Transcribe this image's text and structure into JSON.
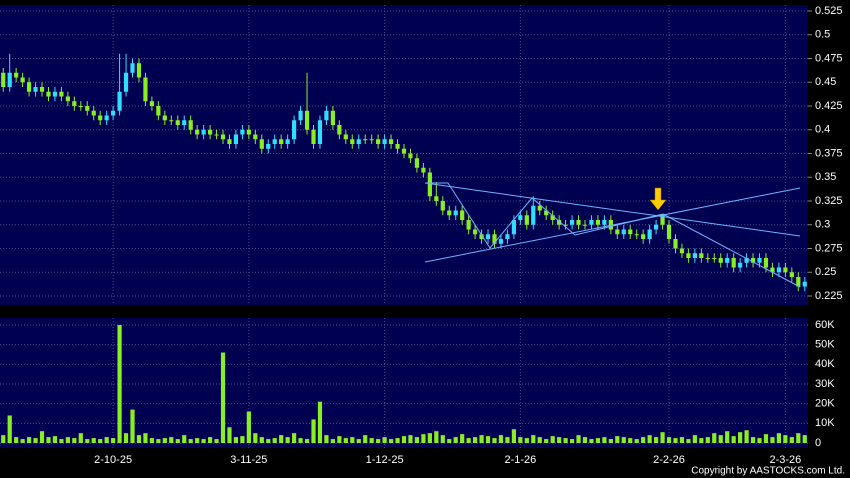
{
  "chart_data": {
    "type": "candlestick",
    "categories": [
      null,
      null,
      null,
      null,
      null,
      null,
      null,
      null,
      null,
      null,
      null,
      null,
      null,
      null,
      null,
      null,
      null,
      "2-10-25",
      null,
      null,
      null,
      null,
      null,
      null,
      null,
      null,
      null,
      null,
      null,
      null,
      null,
      null,
      null,
      null,
      null,
      null,
      null,
      null,
      "3-11-25",
      null,
      null,
      null,
      null,
      null,
      null,
      null,
      null,
      null,
      null,
      null,
      null,
      null,
      null,
      null,
      null,
      null,
      null,
      null,
      null,
      "1-12-25",
      null,
      null,
      null,
      null,
      null,
      null,
      null,
      null,
      null,
      null,
      null,
      null,
      null,
      null,
      null,
      null,
      null,
      null,
      null,
      null,
      "2-1-26",
      null,
      null,
      null,
      null,
      null,
      null,
      null,
      null,
      null,
      null,
      null,
      null,
      null,
      null,
      null,
      null,
      null,
      null,
      null,
      null,
      null,
      null,
      "2-2-26",
      null,
      null,
      null,
      null,
      null,
      null,
      null,
      null,
      null,
      null,
      null,
      null,
      null,
      null,
      null,
      null,
      null,
      "2-3-26",
      null,
      null,
      null
    ],
    "open": [
      0.46,
      0.445,
      0.46,
      0.455,
      0.45,
      0.44,
      0.445,
      0.44,
      0.435,
      0.44,
      0.435,
      0.43,
      0.425,
      0.425,
      0.42,
      0.415,
      0.41,
      0.415,
      0.42,
      0.44,
      0.46,
      0.47,
      0.455,
      0.43,
      0.425,
      0.415,
      0.41,
      0.41,
      0.405,
      0.41,
      0.4,
      0.395,
      0.4,
      0.395,
      0.395,
      0.39,
      0.385,
      0.395,
      0.4,
      0.395,
      0.39,
      0.38,
      0.385,
      0.39,
      0.385,
      0.39,
      0.41,
      0.42,
      0.4,
      0.385,
      0.41,
      0.42,
      0.405,
      0.395,
      0.39,
      0.385,
      0.39,
      0.39,
      0.39,
      0.385,
      0.39,
      0.385,
      0.38,
      0.375,
      0.37,
      0.36,
      0.355,
      0.33,
      0.325,
      0.315,
      0.31,
      0.315,
      0.305,
      0.295,
      0.29,
      0.285,
      0.29,
      0.28,
      0.285,
      0.29,
      0.305,
      0.31,
      0.3,
      0.32,
      0.315,
      0.31,
      0.305,
      0.3,
      0.3,
      0.305,
      0.3,
      0.3,
      0.305,
      0.3,
      0.305,
      0.295,
      0.29,
      0.295,
      0.29,
      0.29,
      0.285,
      0.295,
      0.31,
      0.3,
      0.285,
      0.275,
      0.27,
      0.265,
      0.27,
      0.265,
      0.265,
      0.265,
      0.26,
      0.265,
      0.255,
      0.26,
      0.265,
      0.26,
      0.265,
      0.255,
      0.25,
      0.255,
      0.25,
      0.245,
      0.235
    ],
    "high": [
      0.465,
      0.48,
      0.465,
      0.46,
      0.455,
      0.45,
      0.45,
      0.445,
      0.445,
      0.445,
      0.44,
      0.435,
      0.43,
      0.43,
      0.425,
      0.42,
      0.42,
      0.425,
      0.48,
      0.48,
      0.475,
      0.475,
      0.46,
      0.435,
      0.43,
      0.42,
      0.415,
      0.415,
      0.415,
      0.415,
      0.405,
      0.405,
      0.405,
      0.4,
      0.4,
      0.395,
      0.4,
      0.405,
      0.405,
      0.4,
      0.395,
      0.39,
      0.395,
      0.395,
      0.395,
      0.415,
      0.425,
      0.46,
      0.405,
      0.415,
      0.425,
      0.425,
      0.41,
      0.4,
      0.395,
      0.395,
      0.395,
      0.395,
      0.395,
      0.395,
      0.395,
      0.39,
      0.385,
      0.38,
      0.375,
      0.365,
      0.36,
      0.345,
      0.33,
      0.32,
      0.32,
      0.32,
      0.31,
      0.3,
      0.295,
      0.295,
      0.295,
      0.29,
      0.295,
      0.31,
      0.315,
      0.315,
      0.33,
      0.325,
      0.32,
      0.315,
      0.31,
      0.305,
      0.31,
      0.31,
      0.305,
      0.31,
      0.31,
      0.31,
      0.31,
      0.3,
      0.3,
      0.3,
      0.295,
      0.295,
      0.3,
      0.305,
      0.31,
      0.305,
      0.29,
      0.28,
      0.275,
      0.275,
      0.275,
      0.27,
      0.27,
      0.27,
      0.27,
      0.27,
      0.265,
      0.27,
      0.27,
      0.27,
      0.27,
      0.26,
      0.26,
      0.26,
      0.255,
      0.25,
      0.245
    ],
    "low": [
      0.44,
      0.44,
      0.45,
      0.445,
      0.435,
      0.435,
      0.435,
      0.43,
      0.43,
      0.43,
      0.425,
      0.42,
      0.42,
      0.415,
      0.41,
      0.405,
      0.405,
      0.41,
      0.415,
      0.435,
      0.455,
      0.45,
      0.425,
      0.42,
      0.41,
      0.405,
      0.405,
      0.4,
      0.4,
      0.395,
      0.39,
      0.39,
      0.39,
      0.39,
      0.385,
      0.38,
      0.38,
      0.39,
      0.39,
      0.385,
      0.375,
      0.375,
      0.38,
      0.38,
      0.38,
      0.385,
      0.405,
      0.395,
      0.38,
      0.38,
      0.405,
      0.4,
      0.39,
      0.385,
      0.38,
      0.38,
      0.385,
      0.385,
      0.38,
      0.38,
      0.38,
      0.375,
      0.37,
      0.365,
      0.355,
      0.35,
      0.325,
      0.32,
      0.31,
      0.305,
      0.305,
      0.3,
      0.29,
      0.285,
      0.28,
      0.28,
      0.275,
      0.275,
      0.28,
      0.285,
      0.3,
      0.295,
      0.295,
      0.31,
      0.305,
      0.3,
      0.295,
      0.295,
      0.295,
      0.295,
      0.295,
      0.295,
      0.295,
      0.295,
      0.29,
      0.285,
      0.285,
      0.285,
      0.285,
      0.28,
      0.28,
      0.29,
      0.295,
      0.28,
      0.27,
      0.265,
      0.26,
      0.26,
      0.26,
      0.26,
      0.26,
      0.255,
      0.255,
      0.25,
      0.25,
      0.255,
      0.255,
      0.255,
      0.25,
      0.245,
      0.245,
      0.245,
      0.24,
      0.23,
      0.23
    ],
    "close": [
      0.445,
      0.46,
      0.455,
      0.45,
      0.44,
      0.445,
      0.44,
      0.435,
      0.44,
      0.435,
      0.43,
      0.425,
      0.425,
      0.42,
      0.415,
      0.41,
      0.415,
      0.42,
      0.44,
      0.46,
      0.47,
      0.455,
      0.43,
      0.425,
      0.415,
      0.41,
      0.41,
      0.405,
      0.41,
      0.4,
      0.395,
      0.4,
      0.395,
      0.395,
      0.39,
      0.385,
      0.395,
      0.4,
      0.395,
      0.39,
      0.38,
      0.385,
      0.39,
      0.385,
      0.39,
      0.41,
      0.42,
      0.4,
      0.385,
      0.41,
      0.42,
      0.405,
      0.395,
      0.39,
      0.385,
      0.39,
      0.39,
      0.39,
      0.385,
      0.39,
      0.385,
      0.38,
      0.375,
      0.37,
      0.36,
      0.355,
      0.33,
      0.325,
      0.315,
      0.31,
      0.315,
      0.305,
      0.295,
      0.29,
      0.285,
      0.29,
      0.28,
      0.285,
      0.29,
      0.305,
      0.31,
      0.3,
      0.32,
      0.315,
      0.31,
      0.305,
      0.3,
      0.3,
      0.305,
      0.3,
      0.3,
      0.305,
      0.3,
      0.305,
      0.295,
      0.29,
      0.295,
      0.29,
      0.29,
      0.285,
      0.295,
      0.3,
      0.3,
      0.285,
      0.275,
      0.27,
      0.265,
      0.27,
      0.265,
      0.265,
      0.265,
      0.26,
      0.265,
      0.255,
      0.26,
      0.265,
      0.26,
      0.265,
      0.255,
      0.25,
      0.255,
      0.25,
      0.245,
      0.235,
      0.24
    ],
    "volume": [
      4000,
      14000,
      3000,
      2000,
      3000,
      2500,
      6000,
      3000,
      3500,
      2000,
      3000,
      2500,
      5000,
      2000,
      2500,
      2000,
      3000,
      2500,
      60000,
      5000,
      17000,
      4000,
      5000,
      2500,
      2000,
      2500,
      3000,
      2000,
      4000,
      2000,
      2500,
      2000,
      3000,
      2000,
      46000,
      8000,
      3000,
      3500,
      16000,
      5000,
      3000,
      2000,
      2500,
      4000,
      3000,
      5000,
      2500,
      2000,
      12000,
      21000,
      4000,
      2000,
      3500,
      2500,
      3000,
      2000,
      4000,
      2500,
      2000,
      3000,
      2000,
      2500,
      3500,
      4000,
      3000,
      4500,
      5000,
      6000,
      4000,
      2000,
      3000,
      4500,
      2500,
      3000,
      4000,
      3500,
      2500,
      4000,
      3000,
      7000,
      3000,
      2500,
      4000,
      3000,
      2000,
      3500,
      3000,
      2500,
      2000,
      4000,
      3000,
      2000,
      2500,
      3000,
      2000,
      3500,
      3000,
      2500,
      2000,
      3000,
      4000,
      3000,
      5500,
      3000,
      2500,
      3000,
      2000,
      4000,
      2500,
      3000,
      5000,
      4000,
      6000,
      3500,
      5500,
      6500,
      3000,
      2500,
      4500,
      3000,
      5000,
      4000,
      3000,
      5000,
      4000
    ],
    "up_color": "#33ddff",
    "down_color": "#88f022",
    "volume_color": "#88f022",
    "ylim": [
      0.22,
      0.53
    ],
    "yticks": [
      0.225,
      0.25,
      0.275,
      0.3,
      0.325,
      0.35,
      0.375,
      0.4,
      0.425,
      0.45,
      0.475,
      0.5,
      0.525
    ],
    "volume_ylim": [
      0,
      63000
    ],
    "volume_yticks": [
      0,
      {
        "value": 10000,
        "label": "10K"
      },
      {
        "value": 20000,
        "label": "20K"
      },
      {
        "value": 30000,
        "label": "30K"
      },
      {
        "value": 40000,
        "label": "40K"
      },
      {
        "value": 50000,
        "label": "50K"
      },
      {
        "value": 60000,
        "label": "60K"
      }
    ],
    "grid": true,
    "footer": "Copyright by AASTOCKS.com Ltd."
  }
}
